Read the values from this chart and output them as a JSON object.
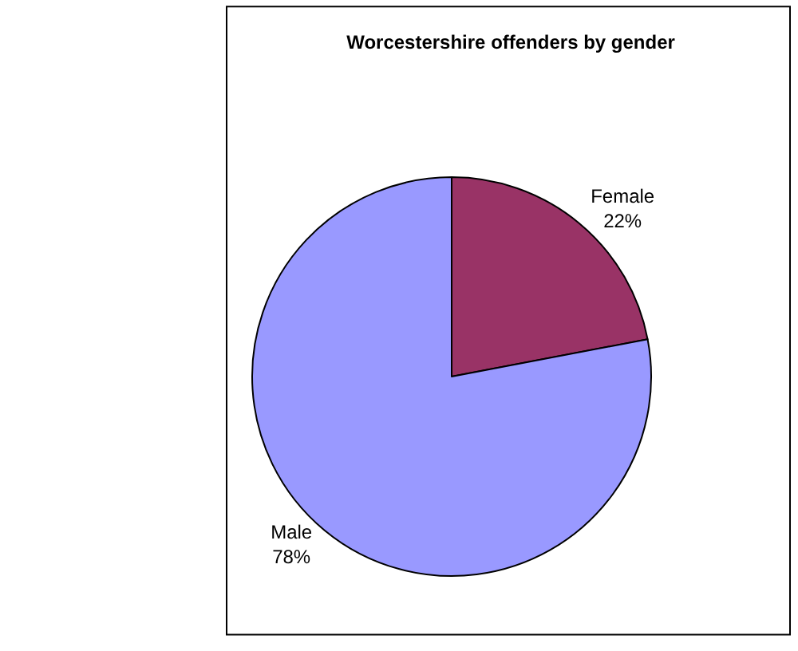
{
  "chart_data": {
    "type": "pie",
    "title": "Worcestershire offenders by gender",
    "categories": [
      "Female",
      "Male"
    ],
    "values": [
      22,
      78
    ],
    "value_labels": [
      "22%",
      "78%"
    ],
    "colors": [
      "#993366",
      "#9999ff"
    ],
    "legend": false
  }
}
